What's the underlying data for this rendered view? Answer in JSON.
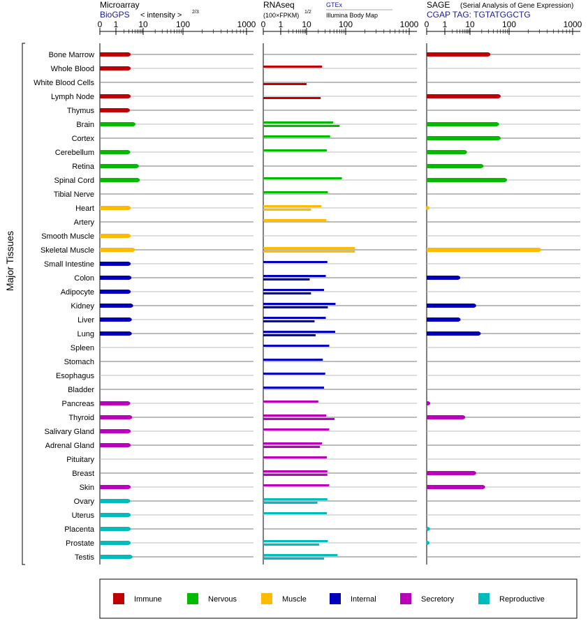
{
  "side_label": "Major Tissues",
  "panels": [
    {
      "id": "microarray",
      "title": "Microarray",
      "subtitle": "BioGPS",
      "subtitle_suffix": "< intensity >",
      "exponent": "2/3",
      "legend_sub": "",
      "ticks": [
        "0",
        "1",
        "10",
        "100",
        "1000"
      ]
    },
    {
      "id": "rnaseq",
      "title": "RNAseq",
      "subtitle": "(100×FPKM)",
      "exponent": "1/2",
      "legend_top": "GTEx",
      "legend_sub": "Illumina Body Map",
      "ticks": [
        "0",
        "1",
        "10",
        "100",
        "1000"
      ]
    },
    {
      "id": "sage",
      "title": "SAGE",
      "title_suffix": "(Serial Analysis of Gene Expression)",
      "subtitle": "CGAP TAG: TGTATGGCTG",
      "ticks": [
        "0",
        "1",
        "10",
        "100",
        "1000"
      ]
    }
  ],
  "categories": [
    {
      "name": "Immune",
      "color": "#c00000"
    },
    {
      "name": "Nervous",
      "color": "#00bb00"
    },
    {
      "name": "Muscle",
      "color": "#ffbb00"
    },
    {
      "name": "Internal",
      "color": "#0000bb"
    },
    {
      "name": "Secretory",
      "color": "#bb00bb"
    },
    {
      "name": "Reproductive",
      "color": "#00bbbb"
    }
  ],
  "chart_data": {
    "type": "bar",
    "orientation": "horizontal",
    "x_scale": "log-like (0,1,10,100,1000)",
    "grid": true,
    "legend_position": "bottom",
    "tissues": [
      {
        "name": "Bone Marrow",
        "cat": 0,
        "micro": 3,
        "gtex": null,
        "ibm": null,
        "sage": 30
      },
      {
        "name": "Whole Blood",
        "cat": 0,
        "micro": 3,
        "gtex": 25,
        "ibm": null,
        "sage": null
      },
      {
        "name": "White Blood Cells",
        "cat": 0,
        "micro": null,
        "gtex": null,
        "ibm": 10,
        "sage": null
      },
      {
        "name": "Lymph Node",
        "cat": 0,
        "micro": 3,
        "gtex": null,
        "ibm": 23,
        "sage": 55
      },
      {
        "name": "Thymus",
        "cat": 0,
        "micro": 2.8,
        "gtex": null,
        "ibm": null,
        "sage": null
      },
      {
        "name": "Brain",
        "cat": 1,
        "micro": 4.5,
        "gtex": 48,
        "ibm": 70,
        "sage": 50
      },
      {
        "name": "Cortex",
        "cat": 1,
        "micro": null,
        "gtex": 40,
        "ibm": null,
        "sage": 55
      },
      {
        "name": "Cerebellum",
        "cat": 1,
        "micro": 2.9,
        "gtex": 33,
        "ibm": null,
        "sage": 6.5
      },
      {
        "name": "Retina",
        "cat": 1,
        "micro": 6,
        "gtex": null,
        "ibm": null,
        "sage": 20
      },
      {
        "name": "Spinal Cord",
        "cat": 1,
        "micro": 6.5,
        "gtex": 80,
        "ibm": null,
        "sage": 80
      },
      {
        "name": "Tibial Nerve",
        "cat": 1,
        "micro": null,
        "gtex": 35,
        "ibm": null,
        "sage": null
      },
      {
        "name": "Heart",
        "cat": 2,
        "micro": 3,
        "gtex": 24,
        "ibm": 13,
        "sage": 0.05
      },
      {
        "name": "Artery",
        "cat": 2,
        "micro": null,
        "gtex": 32,
        "ibm": null,
        "sage": null
      },
      {
        "name": "Smooth Muscle",
        "cat": 2,
        "micro": 3,
        "gtex": null,
        "ibm": null,
        "sage": null
      },
      {
        "name": "Skeletal Muscle",
        "cat": 2,
        "micro": 4.3,
        "gtex": 140,
        "ibm": 140,
        "sage": 300
      },
      {
        "name": "Small Intestine",
        "cat": 3,
        "micro": 3,
        "gtex": 34,
        "ibm": null,
        "sage": null
      },
      {
        "name": "Colon",
        "cat": 3,
        "micro": 3.2,
        "gtex": 31,
        "ibm": 12,
        "sage": 3.5
      },
      {
        "name": "Adipocyte",
        "cat": 3,
        "micro": 3,
        "gtex": 28,
        "ibm": 13,
        "sage": null
      },
      {
        "name": "Kidney",
        "cat": 3,
        "micro": 3.7,
        "gtex": 55,
        "ibm": 35,
        "sage": 13
      },
      {
        "name": "Liver",
        "cat": 3,
        "micro": 3.3,
        "gtex": 31,
        "ibm": 16,
        "sage": 3.6
      },
      {
        "name": "Lung",
        "cat": 3,
        "micro": 3.3,
        "gtex": 54,
        "ibm": 17,
        "sage": 17
      },
      {
        "name": "Spleen",
        "cat": 3,
        "micro": null,
        "gtex": 38,
        "ibm": null,
        "sage": null
      },
      {
        "name": "Stomach",
        "cat": 3,
        "micro": null,
        "gtex": 26,
        "ibm": null,
        "sage": null
      },
      {
        "name": "Esophagus",
        "cat": 3,
        "micro": null,
        "gtex": 30,
        "ibm": null,
        "sage": null
      },
      {
        "name": "Bladder",
        "cat": 3,
        "micro": null,
        "gtex": 28,
        "ibm": null,
        "sage": null
      },
      {
        "name": "Pancreas",
        "cat": 4,
        "micro": 2.9,
        "gtex": 20,
        "ibm": null,
        "sage": 0.1
      },
      {
        "name": "Thyroid",
        "cat": 4,
        "micro": 3.4,
        "gtex": 32,
        "ibm": 52,
        "sage": 5.5
      },
      {
        "name": "Salivary Gland",
        "cat": 4,
        "micro": 3,
        "gtex": 38,
        "ibm": null,
        "sage": null
      },
      {
        "name": "Adrenal Gland",
        "cat": 4,
        "micro": 3,
        "gtex": 25,
        "ibm": 22,
        "sage": null
      },
      {
        "name": "Pituitary",
        "cat": 4,
        "micro": null,
        "gtex": 33,
        "ibm": null,
        "sage": null
      },
      {
        "name": "Breast",
        "cat": 4,
        "micro": null,
        "gtex": 34,
        "ibm": 34,
        "sage": 13
      },
      {
        "name": "Skin",
        "cat": 4,
        "micro": 3,
        "gtex": 38,
        "ibm": null,
        "sage": 22
      },
      {
        "name": "Ovary",
        "cat": 5,
        "micro": 2.9,
        "gtex": 34,
        "ibm": 19,
        "sage": null
      },
      {
        "name": "Uterus",
        "cat": 5,
        "micro": 3,
        "gtex": 33,
        "ibm": null,
        "sage": null
      },
      {
        "name": "Placenta",
        "cat": 5,
        "micro": 3,
        "gtex": null,
        "ibm": null,
        "sage": 0.08
      },
      {
        "name": "Prostate",
        "cat": 5,
        "micro": 3,
        "gtex": 35,
        "ibm": 21,
        "sage": 0.06
      },
      {
        "name": "Testis",
        "cat": 5,
        "micro": 3.5,
        "gtex": 62,
        "ibm": 28,
        "sage": null
      }
    ]
  }
}
